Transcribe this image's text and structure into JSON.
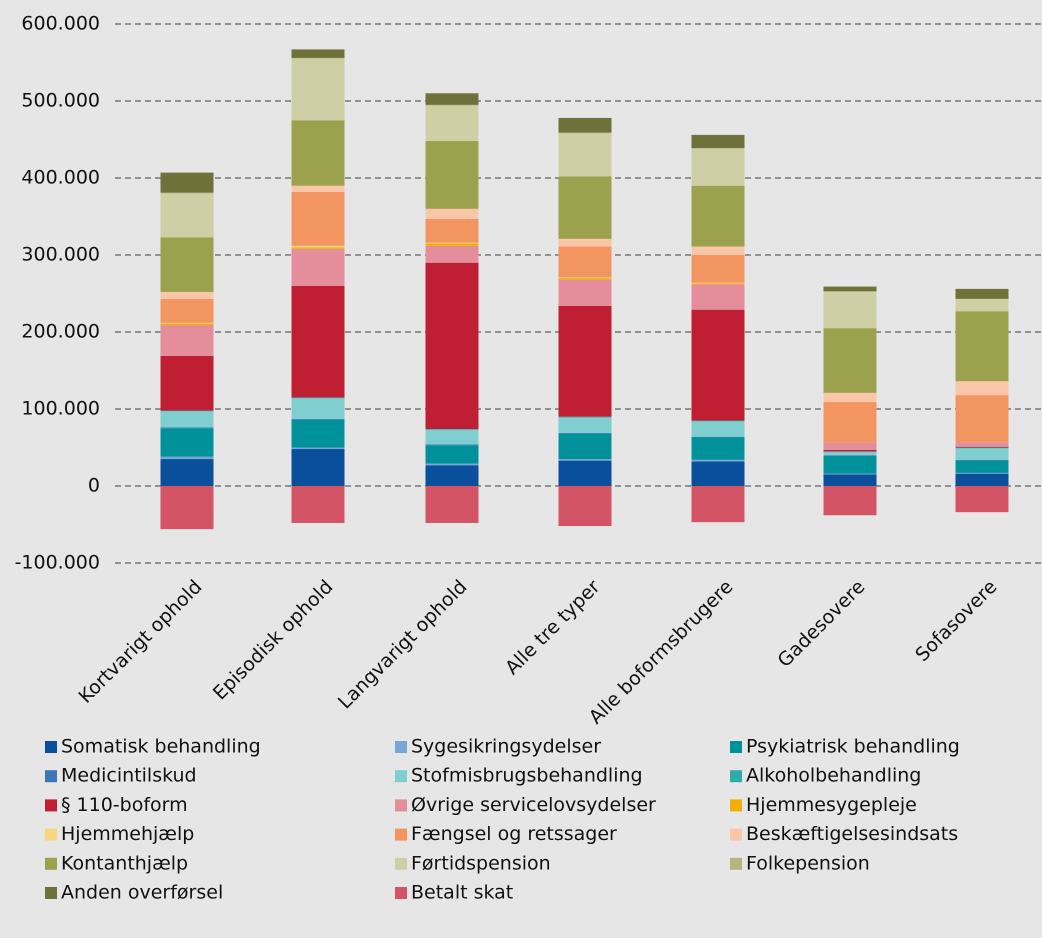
{
  "chart_data": {
    "type": "stacked_bar",
    "categories": [
      "Kortvarigt ophold",
      "Episodisk ophold",
      "Langvarigt ophold",
      "Alle tre typer",
      "Alle boformsbrugere",
      "Gadesovere",
      "Sofasovere"
    ],
    "series": [
      {
        "name": "Somatisk behandling",
        "color": "#0a4f9c",
        "values": [
          35000,
          48000,
          27000,
          33000,
          32000,
          15000,
          16000
        ]
      },
      {
        "name": "Sygesikringsydelser",
        "color": "#7aa6d6",
        "values": [
          3000,
          2000,
          2000,
          2000,
          2000,
          1000,
          1000
        ]
      },
      {
        "name": "Psykiatrisk behandling",
        "color": "#00919a",
        "values": [
          37000,
          36000,
          24000,
          33000,
          29000,
          23000,
          16000
        ]
      },
      {
        "name": "Medicintilskud",
        "color": "#3a78b8",
        "values": [
          1000,
          1000,
          1000,
          1000,
          1000,
          1000,
          1000
        ]
      },
      {
        "name": "Stofmisbrugsbehandling",
        "color": "#7fcfd0",
        "values": [
          21000,
          27000,
          19000,
          20000,
          20000,
          4000,
          15000
        ]
      },
      {
        "name": "Alkoholbehandling",
        "color": "#33aaaa",
        "values": [
          1000,
          1000,
          1000,
          1000,
          1000,
          1000,
          1000
        ]
      },
      {
        "name": "§ 110-boform",
        "color": "#c01f33",
        "values": [
          71000,
          145000,
          216000,
          144000,
          144000,
          2000,
          1000
        ]
      },
      {
        "name": "Øvrige servicelovsydelser",
        "color": "#e38e9a",
        "values": [
          40000,
          48000,
          22000,
          34000,
          33000,
          9000,
          6000
        ]
      },
      {
        "name": "Hjemmesygepleje",
        "color": "#f2b000",
        "values": [
          2000,
          2000,
          3000,
          2000,
          1000,
          0,
          0
        ]
      },
      {
        "name": "Hjemmehjælp",
        "color": "#f8d680",
        "values": [
          1000,
          2000,
          1000,
          1000,
          1000,
          0,
          0
        ]
      },
      {
        "name": "Fængsel og retssager",
        "color": "#f29560",
        "values": [
          31000,
          70000,
          31000,
          40000,
          36000,
          53000,
          61000
        ]
      },
      {
        "name": "Beskæftigelsesindsats",
        "color": "#f9c6a8",
        "values": [
          9000,
          8000,
          13000,
          10000,
          11000,
          12000,
          18000
        ]
      },
      {
        "name": "Kontanthjælp",
        "color": "#9ba14c",
        "values": [
          71000,
          85000,
          88000,
          81000,
          79000,
          84000,
          91000
        ]
      },
      {
        "name": "Førtidspension",
        "color": "#cfcfa6",
        "values": [
          57000,
          80000,
          46000,
          56000,
          48000,
          47000,
          16000
        ]
      },
      {
        "name": "Folkepension",
        "color": "#b5b77a",
        "values": [
          1000,
          1000,
          1000,
          1000,
          1000,
          1000,
          0
        ]
      },
      {
        "name": "Anden overførsel",
        "color": "#6e7139",
        "values": [
          26000,
          11000,
          15000,
          19000,
          17000,
          6000,
          13000
        ]
      },
      {
        "name": "Betalt skat",
        "color": "#d35465",
        "values": [
          -56000,
          -48000,
          -48000,
          -52000,
          -47000,
          -38000,
          -34000
        ]
      }
    ],
    "ylim": [
      -100000,
      600000
    ],
    "yticks": [
      {
        "value": -100000,
        "label": "-100.000"
      },
      0,
      {
        "value": 100000,
        "label": "100.000"
      },
      {
        "value": 200000,
        "label": "200.000"
      },
      {
        "value": 300000,
        "label": "300.000"
      },
      {
        "value": 400000,
        "label": "400.000"
      },
      {
        "value": 500000,
        "label": "500.000"
      },
      {
        "value": 600000,
        "label": "600.000"
      }
    ],
    "grid": true
  }
}
